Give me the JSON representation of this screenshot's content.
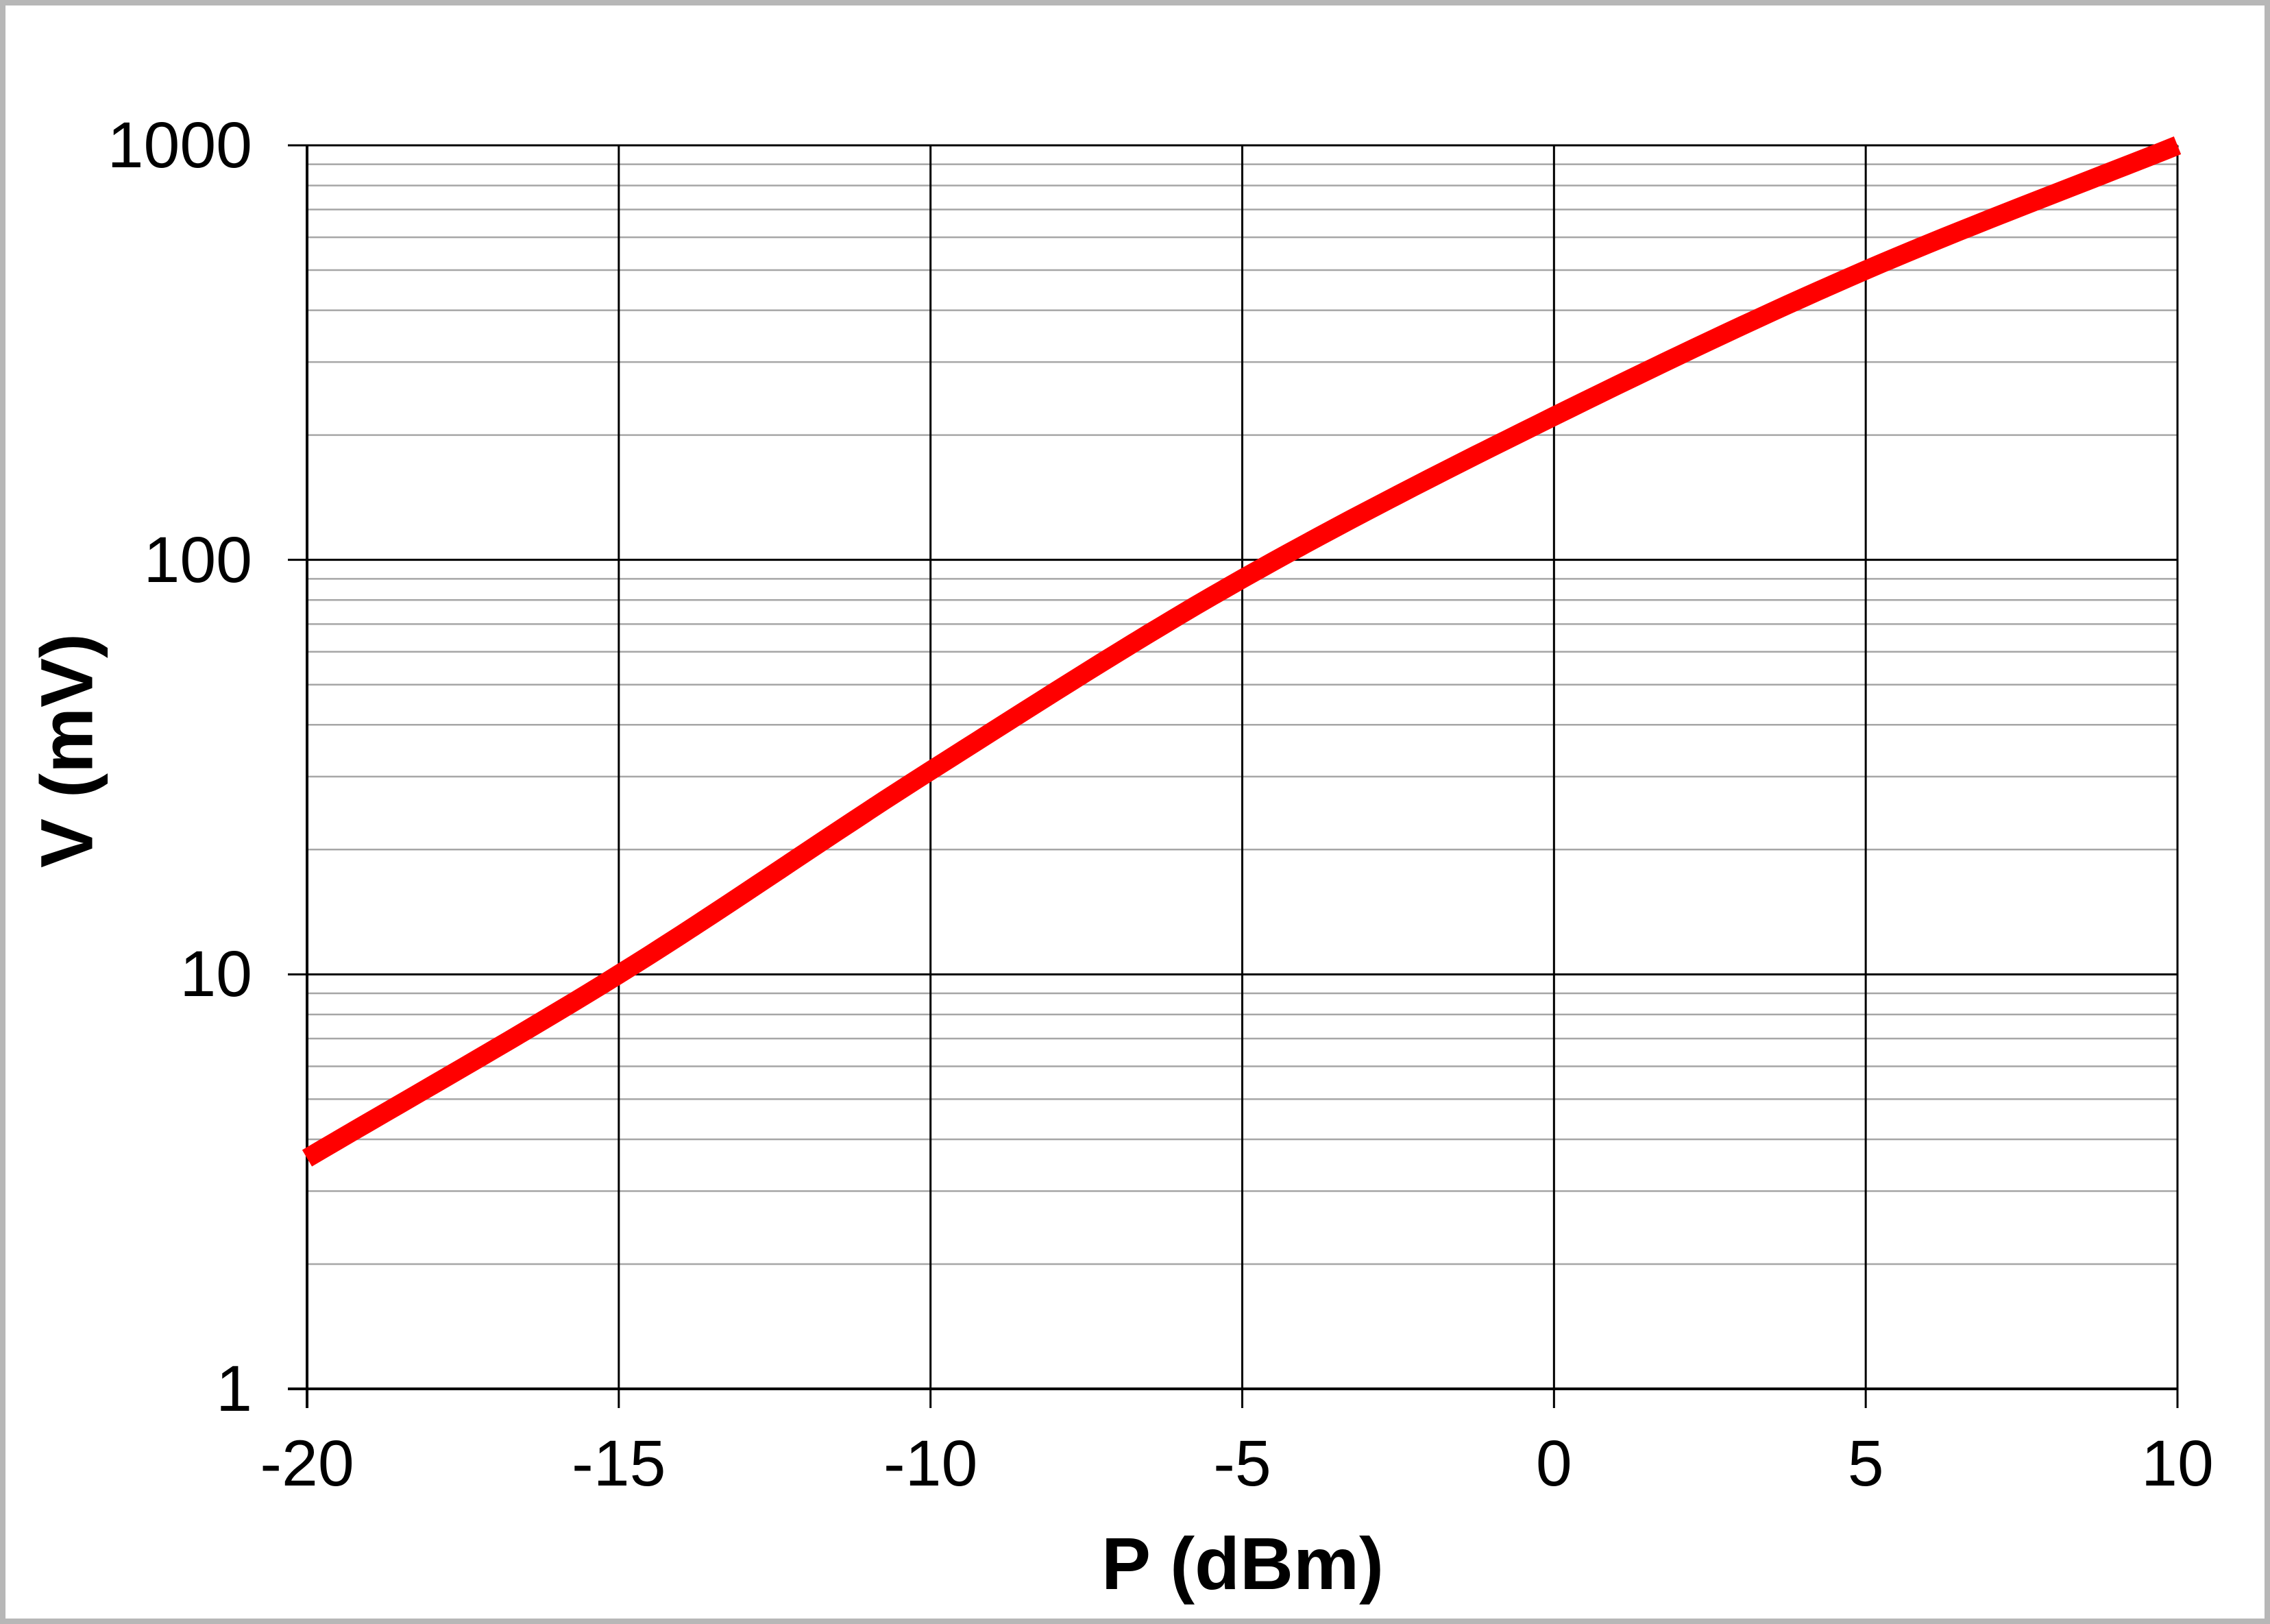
{
  "window": {
    "background_color": "#ffffff",
    "frame_color": "#b7b7b7"
  },
  "colors": {
    "series_line": "#ff0000",
    "major_grid": "#000000",
    "minor_grid": "#a6a6a6",
    "axis_line": "#000000",
    "text": "#000000"
  },
  "chart_data": {
    "type": "line",
    "title": "",
    "xlabel": "P (dBm)",
    "ylabel": "V (mV)",
    "x_scale": "linear",
    "y_scale": "log",
    "xlim": [
      -20,
      10
    ],
    "ylim": [
      1,
      1000
    ],
    "x_ticks": [
      -20,
      -15,
      -10,
      -5,
      0,
      5,
      10
    ],
    "x_tick_labels": [
      "-20",
      "-15",
      "-10",
      "-5",
      "0",
      "5",
      "10"
    ],
    "y_ticks": [
      1,
      10,
      100,
      1000
    ],
    "y_tick_labels": [
      "1",
      "10",
      "100",
      "1000"
    ],
    "grid": {
      "major_horizontal": true,
      "major_vertical": true,
      "minor_horizontal_log": true,
      "minor_vertical": false
    },
    "legend": "none",
    "series": [
      {
        "name": "V",
        "color": "#ff0000",
        "x": [
          -20,
          -15,
          -10,
          -5,
          0,
          5,
          10
        ],
        "y": [
          3.6,
          10,
          31,
          90,
          222,
          500,
          1000
        ]
      }
    ]
  }
}
